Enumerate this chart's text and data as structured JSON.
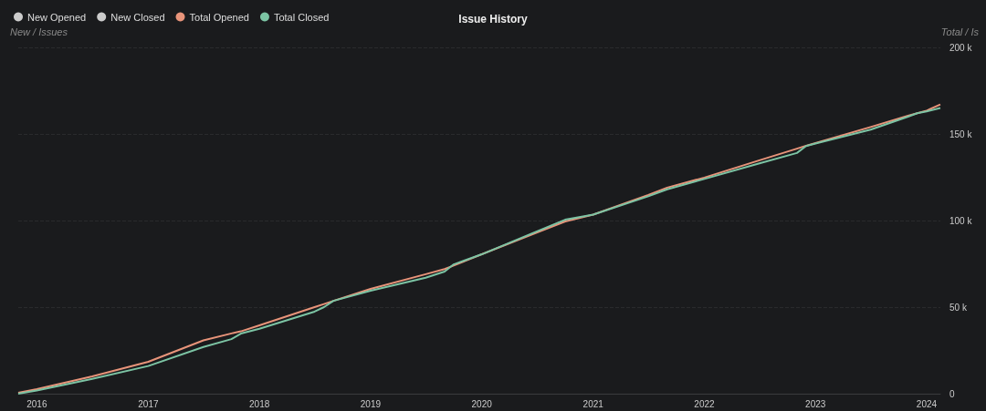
{
  "chart_data": {
    "type": "line",
    "title": "Issue History",
    "ylabel": "New / Issues",
    "y2label": "Total / Is",
    "x": [
      "2015-11",
      "2016-01",
      "2016-07",
      "2017-01",
      "2017-07",
      "2017-10",
      "2017-11",
      "2018-01",
      "2018-07",
      "2018-08",
      "2018-09",
      "2019-01",
      "2019-07",
      "2019-09",
      "2019-10",
      "2020-01",
      "2020-10",
      "2021-01",
      "2021-07",
      "2021-09",
      "2022-01",
      "2022-07",
      "2022-11",
      "2022-12",
      "2023-01",
      "2023-07",
      "2023-11",
      "2023-12",
      "2024-01",
      "2024-02-15"
    ],
    "series": [
      {
        "name": "New Opened",
        "color": "#cccccc",
        "values": [
          null,
          null,
          null,
          null,
          null,
          null,
          null,
          null,
          null,
          null,
          null,
          null,
          null,
          null,
          null,
          null,
          null,
          null,
          null,
          null,
          null,
          null,
          null,
          null,
          null,
          null,
          null,
          null,
          null,
          null
        ]
      },
      {
        "name": "New Closed",
        "color": "#cccccc",
        "values": [
          null,
          null,
          null,
          null,
          null,
          null,
          null,
          null,
          null,
          null,
          null,
          null,
          null,
          null,
          null,
          null,
          null,
          null,
          null,
          null,
          null,
          null,
          null,
          null,
          null,
          null,
          null,
          null,
          null,
          null
        ]
      },
      {
        "name": "Total Opened",
        "color": "#e8947a",
        "axis": "y2",
        "values": [
          500,
          2600,
          10000,
          18400,
          30800,
          34800,
          36000,
          39500,
          50000,
          51800,
          53600,
          60500,
          69000,
          72000,
          74000,
          80500,
          99500,
          103400,
          114800,
          119000,
          124800,
          134800,
          141500,
          143200,
          144700,
          154000,
          160500,
          162000,
          163500,
          167000
        ]
      },
      {
        "name": "Total Closed",
        "color": "#7cc4a4",
        "axis": "y2",
        "values": [
          0,
          1800,
          8500,
          16000,
          27000,
          31500,
          34700,
          37500,
          47400,
          50000,
          53600,
          59500,
          67000,
          70500,
          74700,
          80500,
          100500,
          103400,
          114000,
          118000,
          124000,
          133000,
          139000,
          143000,
          144500,
          152500,
          160000,
          162000,
          163000,
          165000
        ]
      }
    ],
    "xlim": [
      "2015-11",
      "2024-02-15"
    ],
    "xticks": [
      "2016",
      "2017",
      "2018",
      "2019",
      "2020",
      "2021",
      "2022",
      "2023",
      "2024"
    ],
    "y2lim": [
      0,
      200000
    ],
    "y2ticks": [
      {
        "value": 0,
        "label": "0"
      },
      {
        "value": 50000,
        "label": "50 k"
      },
      {
        "value": 100000,
        "label": "100 k"
      },
      {
        "value": 150000,
        "label": "150 k"
      },
      {
        "value": 200000,
        "label": "200 k"
      }
    ],
    "grid": "y",
    "legend": "top left",
    "marker": "none",
    "line_style": "solid"
  }
}
